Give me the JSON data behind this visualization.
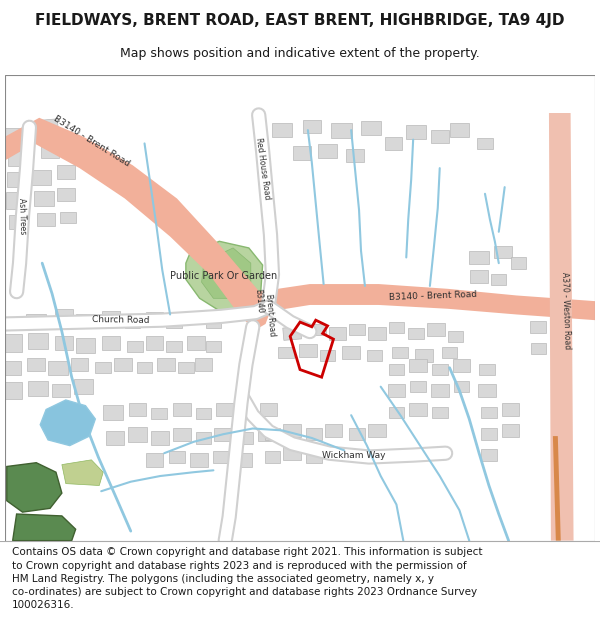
{
  "title": "FIELDWAYS, BRENT ROAD, EAST BRENT, HIGHBRIDGE, TA9 4JD",
  "subtitle": "Map shows position and indicative extent of the property.",
  "footer": "Contains OS data © Crown copyright and database right 2021. This information is subject\nto Crown copyright and database rights 2023 and is reproduced with the permission of\nHM Land Registry. The polygons (including the associated geometry, namely x, y\nco-ordinates) are subject to Crown copyright and database rights 2023 Ordnance Survey\n100026316.",
  "bg_color": "#ffffff",
  "map_bg": "#ffffff",
  "road_salmon": "#f2b09a",
  "road_dark": "#e09070",
  "water_blue": "#90c8e0",
  "green_park": "#b8d4a0",
  "green_dark": "#5a8a50",
  "building_gray": "#d8d8d8",
  "building_outline": "#b8b8b8",
  "red_outline": "#cc0000",
  "text_dark": "#1a1a1a",
  "road_label_color": "#303030",
  "title_fontsize": 11,
  "subtitle_fontsize": 9,
  "footer_fontsize": 7.5
}
